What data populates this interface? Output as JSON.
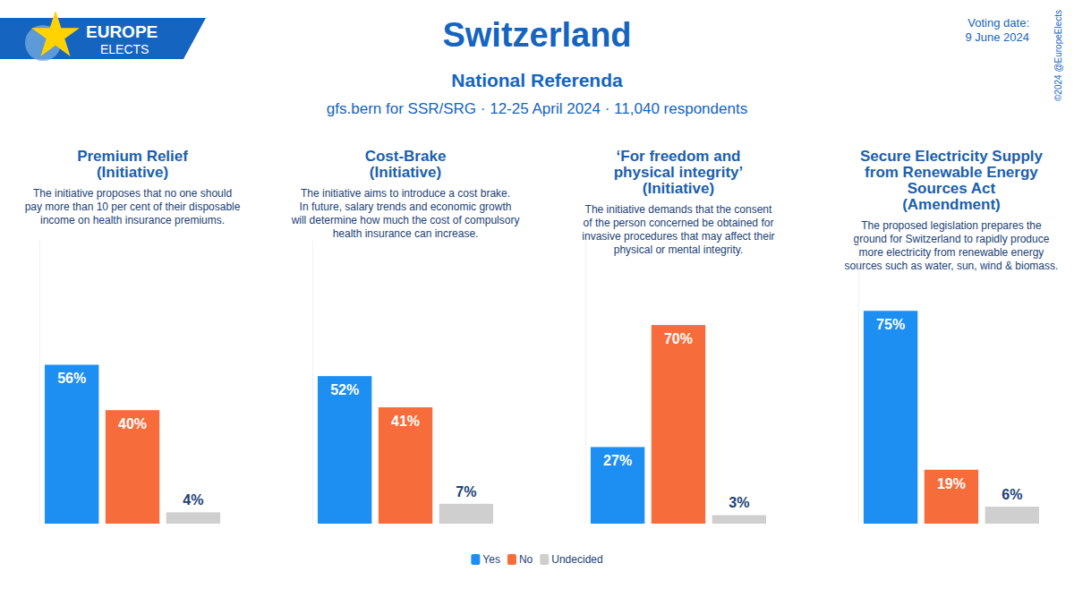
{
  "header": {
    "logo": [
      "EUROPE",
      "ELECTS"
    ],
    "source": "gfs.bern for SSR/SRG · 12-25 April 2024 · 11,040 respondents",
    "voting_date": [
      "Voting date:",
      "9 June 2024"
    ],
    "copyright": "©2024 @EuropeElects"
  },
  "chart_data": {
    "type": "bar",
    "title": "Switzerland",
    "subtitle": "National Referenda",
    "categories": [
      "Premium Relief\n(Initiative)",
      "Cost-Brake\n(Initiative)",
      "‘For freedom and\nphysical integrity’\n(Initiative)",
      "Secure Electricity Supply\nfrom Renewable Energy\nSources Act\n(Amendment)"
    ],
    "annotations": [
      "The initiative proposes that no one should\npay more than 10 per cent of their disposable\nincome on health insurance premiums.",
      "The initiative aims to introduce a cost brake.\nIn future, salary trends and economic growth\nwill determine how much the cost of compulsory\nhealth insurance can increase.",
      "The initiative demands that the consent\nof the person concerned be obtained for\ninvasive procedures that may affect their\nphysical or mental integrity.",
      "The proposed legislation prepares the\nground for Switzerland to rapidly produce\nmore electricity from renewable energy\nsources such as water, sun, wind & biomass."
    ],
    "series": [
      {
        "name": "Yes",
        "color": "#1e8ff2",
        "values": [
          56,
          52,
          27,
          75
        ],
        "value_labels": [
          "56%",
          "52%",
          "27%",
          "75%"
        ]
      },
      {
        "name": "No",
        "color": "#f66d3b",
        "values": [
          40,
          41,
          70,
          19
        ],
        "value_labels": [
          "40%",
          "41%",
          "70%",
          "19%"
        ]
      },
      {
        "name": "Undecided",
        "color": "#cfcfcf",
        "values": [
          4,
          7,
          3,
          6
        ],
        "value_labels": [
          "4%",
          "7%",
          "3%",
          "6%"
        ]
      }
    ],
    "ylim": [
      0,
      100
    ],
    "yticks": [],
    "grid": false,
    "data_labels": true,
    "tick_labels": false,
    "legend": "bottom"
  }
}
